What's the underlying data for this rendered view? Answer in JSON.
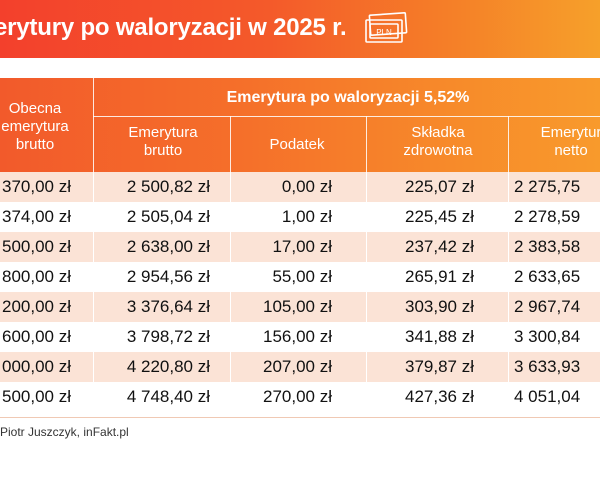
{
  "title": "erytury po waloryzacji w 2025 r.",
  "icon": "pln-banknote-icon",
  "icon_label": "PLN",
  "colors": {
    "title_gradient_start": "#f3402c",
    "title_gradient_end": "#f6a02a",
    "header_orange": "#f56f2a",
    "row_stripe": "#fbe3d6"
  },
  "table": {
    "col0_header": [
      "Obecna",
      "emerytura",
      "brutto"
    ],
    "group_header": "Emerytura po waloryzacji 5,52%",
    "col1_header": [
      "Emerytura",
      "brutto"
    ],
    "col2_header": [
      "Podatek"
    ],
    "col3_header": [
      "Składka",
      "zdrowotna"
    ],
    "col4_header": [
      "Emerytur",
      "netto"
    ],
    "rows": [
      [
        "370,00 zł",
        "2 500,82 zł",
        "0,00 zł",
        "225,07 zł",
        "2 275,75"
      ],
      [
        "374,00 zł",
        "2 505,04 zł",
        "1,00 zł",
        "225,45 zł",
        "2 278,59"
      ],
      [
        "500,00 zł",
        "2 638,00 zł",
        "17,00 zł",
        "237,42 zł",
        "2 383,58"
      ],
      [
        "800,00 zł",
        "2 954,56 zł",
        "55,00 zł",
        "265,91 zł",
        "2 633,65"
      ],
      [
        "200,00 zł",
        "3 376,64 zł",
        "105,00 zł",
        "303,90 zł",
        "2 967,74"
      ],
      [
        "600,00 zł",
        "3 798,72 zł",
        "156,00 zł",
        "341,88 zł",
        "3 300,84"
      ],
      [
        "000,00 zł",
        "4 220,80 zł",
        "207,00 zł",
        "379,87 zł",
        "3 633,93"
      ],
      [
        "500,00 zł",
        "4 748,40 zł",
        "270,00 zł",
        "427,36 zł",
        "4 051,04"
      ]
    ]
  },
  "footer": "Piotr Juszczyk, inFakt.pl"
}
